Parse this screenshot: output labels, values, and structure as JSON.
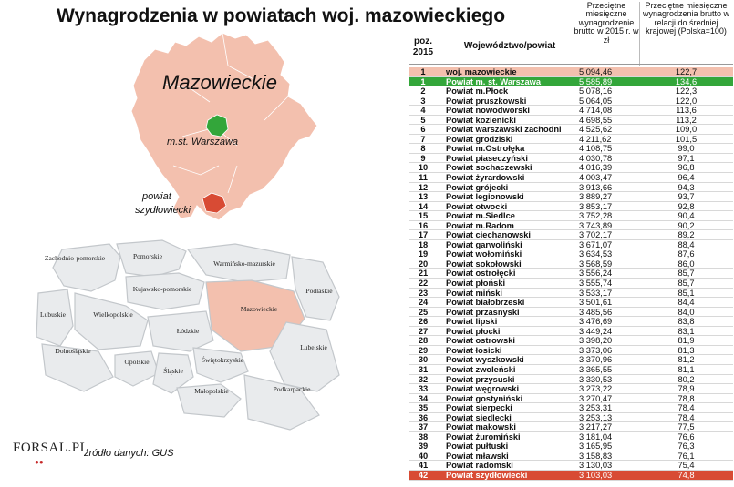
{
  "title": "Wynagrodzenia w powiatach woj. mazowieckiego",
  "map_labels": {
    "region": "Mazowieckie",
    "capital": "m.st. Warszawa",
    "szyd_line1": "powiat",
    "szyd_line2": "szydłowiecki"
  },
  "poland_map_labels": [
    "Zachodnio-pomorskie",
    "Pomorskie",
    "Warmińsko-mazurskie",
    "Podlaskie",
    "Kujawsko-pomorskie",
    "Lubuskie",
    "Wielkopolskie",
    "Mazowieckie",
    "Łódzkie",
    "Dolnośląskie",
    "Opolskie",
    "Śląskie",
    "Świętokrzyskie",
    "Lubelskie",
    "Małopolskie",
    "Podkarpackie"
  ],
  "colors": {
    "region": "#f3c0ae",
    "capital": "#33a63a",
    "szyd": "#d84b34",
    "map_gray": "#e9ebed"
  },
  "source": "źródło danych: GUS",
  "logo": "FORSAL.PL",
  "chart_data": {
    "type": "table",
    "columns": [
      "poz. 2015",
      "Województwo/powiat",
      "Przeciętne miesięczne wynagrodzenie brutto w 2015 r. w zł",
      "Przeciętne miesięczne wynagrodzenia brutto w relacji do średniej krajowej (Polska=100)"
    ],
    "rows": [
      {
        "pos": "1",
        "name": "woj. mazowieckie",
        "avg": "5 094,46",
        "rel": "122,7",
        "hl": "region"
      },
      {
        "pos": "1",
        "name": "Powiat m. st. Warszawa",
        "avg": "5 585,89",
        "rel": "134,6",
        "hl": "wwa"
      },
      {
        "pos": "2",
        "name": "Powiat m.Płock",
        "avg": "5 078,16",
        "rel": "122,3"
      },
      {
        "pos": "3",
        "name": "Powiat pruszkowski",
        "avg": "5 064,05",
        "rel": "122,0"
      },
      {
        "pos": "4",
        "name": "Powiat nowodworski",
        "avg": "4 714,08",
        "rel": "113,6"
      },
      {
        "pos": "5",
        "name": "Powiat kozienicki",
        "avg": "4 698,55",
        "rel": "113,2"
      },
      {
        "pos": "6",
        "name": "Powiat warszawski zachodni",
        "avg": "4 525,62",
        "rel": "109,0"
      },
      {
        "pos": "7",
        "name": "Powiat grodziski",
        "avg": "4 211,62",
        "rel": "101,5"
      },
      {
        "pos": "8",
        "name": "Powiat m.Ostrołęka",
        "avg": "4 108,75",
        "rel": "99,0"
      },
      {
        "pos": "9",
        "name": "Powiat piaseczyński",
        "avg": "4 030,78",
        "rel": "97,1"
      },
      {
        "pos": "10",
        "name": "Powiat sochaczewski",
        "avg": "4 016,39",
        "rel": "96,8"
      },
      {
        "pos": "11",
        "name": "Powiat żyrardowski",
        "avg": "4 003,47",
        "rel": "96,4"
      },
      {
        "pos": "12",
        "name": "Powiat grójecki",
        "avg": "3 913,66",
        "rel": "94,3"
      },
      {
        "pos": "13",
        "name": "Powiat legionowski",
        "avg": "3 889,27",
        "rel": "93,7"
      },
      {
        "pos": "14",
        "name": "Powiat otwocki",
        "avg": "3 853,17",
        "rel": "92,8"
      },
      {
        "pos": "15",
        "name": "Powiat m.Siedlce",
        "avg": "3 752,28",
        "rel": "90,4"
      },
      {
        "pos": "16",
        "name": "Powiat m.Radom",
        "avg": "3 743,89",
        "rel": "90,2"
      },
      {
        "pos": "17",
        "name": "Powiat ciechanowski",
        "avg": "3 702,17",
        "rel": "89,2"
      },
      {
        "pos": "18",
        "name": "Powiat garwoliński",
        "avg": "3 671,07",
        "rel": "88,4"
      },
      {
        "pos": "19",
        "name": "Powiat wołomiński",
        "avg": "3 634,53",
        "rel": "87,6"
      },
      {
        "pos": "20",
        "name": "Powiat sokołowski",
        "avg": "3 568,59",
        "rel": "86,0"
      },
      {
        "pos": "21",
        "name": "Powiat ostrołęcki",
        "avg": "3 556,24",
        "rel": "85,7"
      },
      {
        "pos": "22",
        "name": "Powiat płoński",
        "avg": "3 555,74",
        "rel": "85,7"
      },
      {
        "pos": "23",
        "name": "Powiat miński",
        "avg": "3 533,17",
        "rel": "85,1"
      },
      {
        "pos": "24",
        "name": "Powiat białobrzeski",
        "avg": "3 501,61",
        "rel": "84,4"
      },
      {
        "pos": "25",
        "name": "Powiat przasnyski",
        "avg": "3 485,56",
        "rel": "84,0"
      },
      {
        "pos": "26",
        "name": "Powiat lipski",
        "avg": "3 476,69",
        "rel": "83,8"
      },
      {
        "pos": "27",
        "name": "Powiat płocki",
        "avg": "3 449,24",
        "rel": "83,1"
      },
      {
        "pos": "28",
        "name": "Powiat ostrowski",
        "avg": "3 398,20",
        "rel": "81,9"
      },
      {
        "pos": "29",
        "name": "Powiat łosicki",
        "avg": "3 373,06",
        "rel": "81,3"
      },
      {
        "pos": "30",
        "name": "Powiat wyszkowski",
        "avg": "3 370,96",
        "rel": "81,2"
      },
      {
        "pos": "31",
        "name": "Powiat zwoleński",
        "avg": "3 365,55",
        "rel": "81,1"
      },
      {
        "pos": "32",
        "name": "Powiat przysuski",
        "avg": "3 330,53",
        "rel": "80,2"
      },
      {
        "pos": "33",
        "name": "Powiat węgrowski",
        "avg": "3 273,22",
        "rel": "78,9"
      },
      {
        "pos": "34",
        "name": "Powiat gostyniński",
        "avg": "3 270,47",
        "rel": "78,8"
      },
      {
        "pos": "35",
        "name": "Powiat sierpecki",
        "avg": "3 253,31",
        "rel": "78,4"
      },
      {
        "pos": "36",
        "name": "Powiat siedlecki",
        "avg": "3 253,13",
        "rel": "78,4"
      },
      {
        "pos": "37",
        "name": "Powiat makowski",
        "avg": "3 217,27",
        "rel": "77,5"
      },
      {
        "pos": "38",
        "name": "Powiat żuromiński",
        "avg": "3 181,04",
        "rel": "76,6"
      },
      {
        "pos": "39",
        "name": "Powiat pułtuski",
        "avg": "3 165,95",
        "rel": "76,3"
      },
      {
        "pos": "40",
        "name": "Powiat mławski",
        "avg": "3 158,83",
        "rel": "76,1"
      },
      {
        "pos": "41",
        "name": "Powiat radomski",
        "avg": "3 130,03",
        "rel": "75,4"
      },
      {
        "pos": "42",
        "name": "Powiat szydłowiecki",
        "avg": "3 103,03",
        "rel": "74,8",
        "hl": "szyd"
      }
    ]
  }
}
